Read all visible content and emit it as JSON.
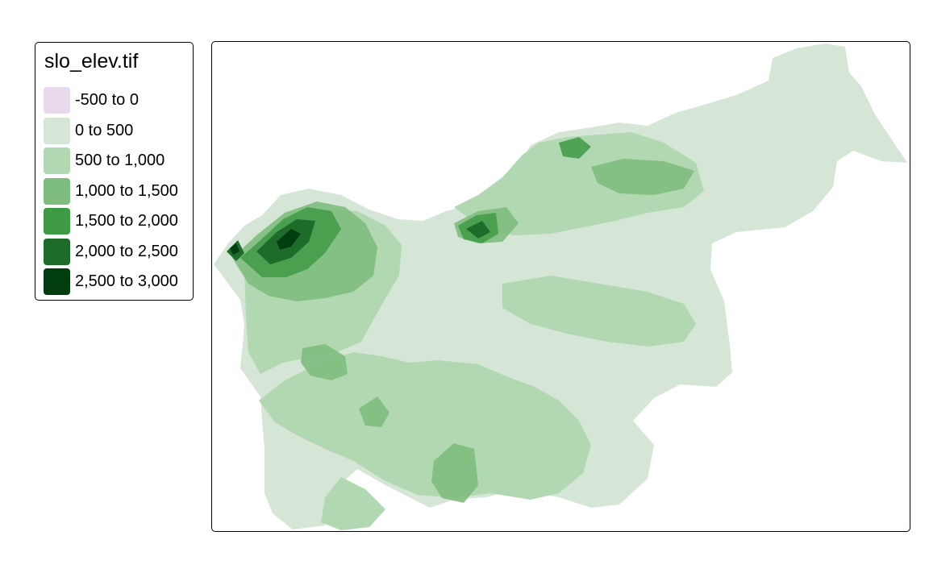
{
  "legend": {
    "title": "slo_elev.tif",
    "classes": [
      {
        "label": "-500 to 0",
        "color": "#e8daec"
      },
      {
        "label": "0 to 500",
        "color": "#d6e6d6"
      },
      {
        "label": "500 to 1,000",
        "color": "#b1d8b1"
      },
      {
        "label": "1,000 to 1,500",
        "color": "#7fbc7f"
      },
      {
        "label": "1,500 to 2,000",
        "color": "#3f9a45"
      },
      {
        "label": "2,000 to 2,500",
        "color": "#1e6b2a"
      },
      {
        "label": "2,500 to 3,000",
        "color": "#023d10"
      }
    ]
  }
}
